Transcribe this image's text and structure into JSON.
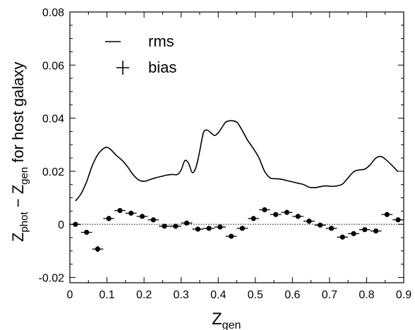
{
  "chart_data": {
    "type": "line",
    "xlabel": {
      "main": "Z",
      "sub": "gen"
    },
    "ylabel": {
      "z1": "Z",
      "sub1": "phot",
      "minus": " − ",
      "z2": "Z",
      "sub2": "gen",
      "rest": " for host galaxy"
    },
    "xlim": [
      0,
      0.9
    ],
    "ylim": [
      -0.022,
      0.08
    ],
    "x_ticks": [
      0,
      0.1,
      0.2,
      0.3,
      0.4,
      0.5,
      0.6,
      0.7,
      0.8,
      0.9
    ],
    "x_tick_labels": [
      "0",
      "0.1",
      "0.2",
      "0.3",
      "0.4",
      "0.5",
      "0.6",
      "0.7",
      "0.8",
      "0.9"
    ],
    "y_ticks": [
      -0.02,
      0,
      0.02,
      0.04,
      0.06,
      0.08
    ],
    "y_tick_labels": [
      "-0.02",
      "0",
      "0.02",
      "0.04",
      "0.06",
      "0.08"
    ],
    "zero_line": "dotted",
    "legend": {
      "placement": "top-left",
      "rms": "rms",
      "bias": "bias"
    },
    "series": [
      {
        "name": "rms",
        "style": "line",
        "x": [
          0.015,
          0.03,
          0.045,
          0.06,
          0.075,
          0.09,
          0.1,
          0.11,
          0.125,
          0.14,
          0.155,
          0.17,
          0.185,
          0.2,
          0.215,
          0.23,
          0.245,
          0.26,
          0.275,
          0.29,
          0.3,
          0.31,
          0.32,
          0.33,
          0.34,
          0.35,
          0.36,
          0.37,
          0.38,
          0.39,
          0.4,
          0.41,
          0.42,
          0.43,
          0.44,
          0.45,
          0.46,
          0.47,
          0.48,
          0.495,
          0.51,
          0.525,
          0.54,
          0.555,
          0.57,
          0.585,
          0.6,
          0.615,
          0.63,
          0.645,
          0.66,
          0.675,
          0.69,
          0.705,
          0.72,
          0.735,
          0.75,
          0.765,
          0.78,
          0.795,
          0.81,
          0.825,
          0.84,
          0.855,
          0.87,
          0.885
        ],
        "y": [
          0.0088,
          0.0115,
          0.016,
          0.022,
          0.0262,
          0.0285,
          0.029,
          0.0282,
          0.026,
          0.0242,
          0.0218,
          0.0188,
          0.0168,
          0.0162,
          0.0168,
          0.0175,
          0.018,
          0.0185,
          0.0188,
          0.0188,
          0.0205,
          0.024,
          0.023,
          0.0195,
          0.0215,
          0.0275,
          0.0345,
          0.0355,
          0.0345,
          0.0335,
          0.0345,
          0.0365,
          0.0385,
          0.039,
          0.039,
          0.0385,
          0.0365,
          0.034,
          0.0315,
          0.0285,
          0.025,
          0.02,
          0.0175,
          0.0172,
          0.017,
          0.0165,
          0.016,
          0.0155,
          0.015,
          0.014,
          0.0138,
          0.0142,
          0.0145,
          0.0143,
          0.0145,
          0.0152,
          0.0175,
          0.0198,
          0.0205,
          0.0208,
          0.0225,
          0.025,
          0.0255,
          0.024,
          0.022,
          0.0198
        ]
      },
      {
        "name": "bias",
        "style": "points_with_error_bars",
        "x": [
          0.015,
          0.045,
          0.075,
          0.105,
          0.135,
          0.165,
          0.195,
          0.225,
          0.255,
          0.285,
          0.315,
          0.345,
          0.375,
          0.405,
          0.435,
          0.465,
          0.495,
          0.525,
          0.555,
          0.585,
          0.615,
          0.645,
          0.675,
          0.705,
          0.735,
          0.765,
          0.795,
          0.825,
          0.855,
          0.885
        ],
        "y": [
          0.0,
          -0.003,
          -0.0093,
          0.0022,
          0.0052,
          0.0042,
          0.003,
          0.0017,
          -0.0007,
          -0.0007,
          0.0005,
          -0.0018,
          -0.0015,
          -0.001,
          -0.0045,
          -0.0015,
          0.0022,
          0.0055,
          0.0037,
          0.0045,
          0.003,
          0.0012,
          -0.0003,
          -0.0015,
          -0.0048,
          -0.0035,
          -0.002,
          -0.0025,
          0.0037,
          0.0017
        ],
        "xerr": 0.015,
        "yerr": [
          0.0006,
          0.0006,
          0.0012,
          0.001,
          0.0009,
          0.0006,
          0.0005,
          0.0005,
          0.0005,
          0.0005,
          0.0005,
          0.0005,
          0.0005,
          0.0005,
          0.0006,
          0.0005,
          0.0005,
          0.0006,
          0.0005,
          0.0005,
          0.0005,
          0.0005,
          0.0005,
          0.0005,
          0.0006,
          0.0005,
          0.0005,
          0.0005,
          0.0006,
          0.0007
        ]
      }
    ]
  }
}
